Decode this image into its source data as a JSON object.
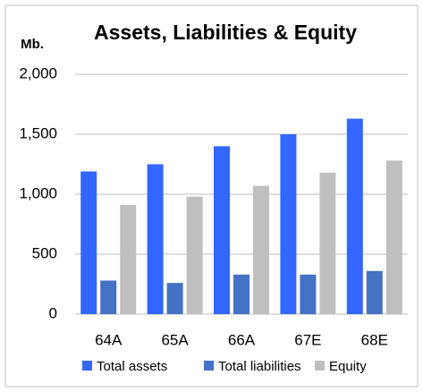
{
  "chart_data": {
    "type": "bar",
    "title": "Assets, Liabilities & Equity",
    "y_label": "Mb.",
    "categories": [
      "64A",
      "65A",
      "66A",
      "67E",
      "68E"
    ],
    "series": [
      {
        "name": "Total assets",
        "color": "#3366ff",
        "values": [
          1190,
          1250,
          1400,
          1500,
          1630
        ]
      },
      {
        "name": "Total liabilities",
        "color": "#4472c4",
        "values": [
          280,
          260,
          330,
          330,
          360
        ]
      },
      {
        "name": "Equity",
        "color": "#bfbfbf",
        "values": [
          910,
          980,
          1070,
          1180,
          1280
        ]
      }
    ],
    "ylim": [
      0,
      2000
    ],
    "yticks": [
      0,
      {
        "value": 500,
        "label": "500"
      },
      {
        "value": 1000,
        "label": "1,000"
      },
      {
        "value": 1500,
        "label": "1,500"
      },
      {
        "value": 2000,
        "label": "2,000"
      }
    ],
    "grid": true,
    "legend": "bottom"
  }
}
